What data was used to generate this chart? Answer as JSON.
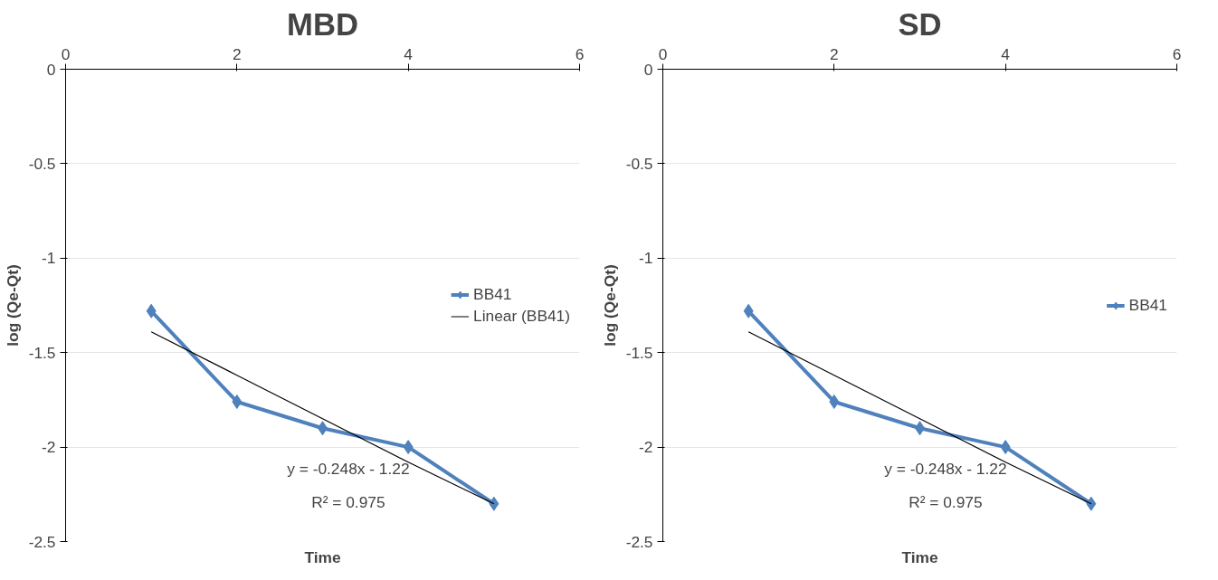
{
  "chart_data": [
    {
      "type": "line",
      "title": "MBD",
      "xlabel": "Time",
      "ylabel": "log (Qe-Qt)",
      "x": [
        1,
        2,
        3,
        4,
        5
      ],
      "series": [
        {
          "name": "BB41",
          "color": "#4f81bd",
          "values": [
            -1.28,
            -1.76,
            -1.9,
            -2.0,
            -2.3
          ],
          "marker": "diamond"
        },
        {
          "name": "Linear (BB41)",
          "color": "#000000",
          "type": "line",
          "values": [
            -1.39,
            -1.62,
            -1.85,
            -2.08,
            -2.3
          ],
          "marker": "none"
        }
      ],
      "xlim": [
        0,
        6
      ],
      "xticks": [
        0,
        2,
        4,
        6
      ],
      "ylim": [
        -2.5,
        0
      ],
      "yticks": [
        0,
        -0.5,
        -1,
        -1.5,
        -2,
        -2.5
      ],
      "grid": "y",
      "legend": "right",
      "annotations": [
        "y = -0.248x - 1.22",
        "R² = 0.975"
      ]
    },
    {
      "type": "line",
      "title": "SD",
      "xlabel": "Time",
      "ylabel": "log (Qe-Qt)",
      "x": [
        1,
        2,
        3,
        4,
        5
      ],
      "series": [
        {
          "name": "BB41",
          "color": "#4f81bd",
          "values": [
            -1.28,
            -1.76,
            -1.9,
            -2.0,
            -2.3
          ],
          "marker": "diamond"
        },
        {
          "color": "#000000",
          "type": "line",
          "values": [
            -1.39,
            -1.62,
            -1.85,
            -2.08,
            -2.3
          ],
          "marker": "none"
        }
      ],
      "xlim": [
        0,
        6
      ],
      "xticks": [
        0,
        2,
        4,
        6
      ],
      "ylim": [
        -2.5,
        0
      ],
      "yticks": [
        0,
        -0.5,
        -1,
        -1.5,
        -2,
        -2.5
      ],
      "grid": "y",
      "legend": "right",
      "annotations": [
        "y = -0.248x - 1.22",
        "R² = 0.975"
      ]
    }
  ]
}
